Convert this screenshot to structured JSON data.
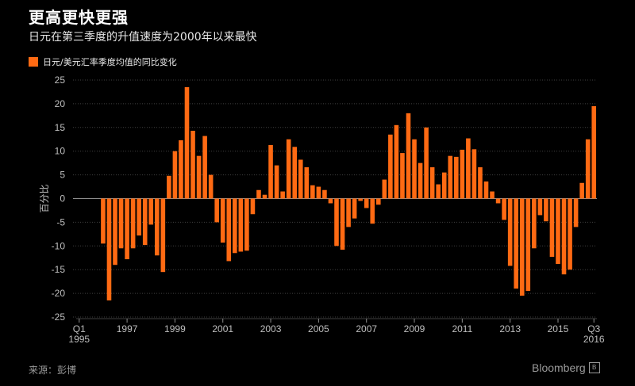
{
  "title": "更高更快更强",
  "subtitle": "日元在第三季度的升值速度为2000年以来最快",
  "legend": {
    "label": "日元/美元汇率季度均值的同比变化"
  },
  "source": "来源：彭博",
  "brand": {
    "name": "Bloomberg",
    "icon": "bloomberg-logo-icon"
  },
  "colors": {
    "bar": "#ff6a13",
    "background": "#000000",
    "grid": "#404040",
    "zero_line": "#8c8c8c"
  },
  "chart_data": {
    "type": "bar",
    "title": "更高更快更强",
    "ylabel": "百分比",
    "xlabel": "",
    "ylim": [
      -25,
      25
    ],
    "y_ticks": [
      25,
      20,
      15,
      10,
      5,
      0,
      -5,
      -10,
      -15,
      -20,
      -25
    ],
    "grid": true,
    "x_tick_labels": [
      {
        "index": 0,
        "label": "Q1",
        "sublabel": "1995"
      },
      {
        "index": 8,
        "label": "1997"
      },
      {
        "index": 16,
        "label": "1999"
      },
      {
        "index": 24,
        "label": "2001"
      },
      {
        "index": 32,
        "label": "2003"
      },
      {
        "index": 40,
        "label": "2005"
      },
      {
        "index": 48,
        "label": "2007"
      },
      {
        "index": 56,
        "label": "2009"
      },
      {
        "index": 64,
        "label": "2011"
      },
      {
        "index": 72,
        "label": "2013"
      },
      {
        "index": 80,
        "label": "2015"
      },
      {
        "index": 86,
        "label": "Q3",
        "sublabel": "2016"
      }
    ],
    "series": [
      {
        "values": [
          0,
          0,
          0,
          0,
          -9.5,
          -21.5,
          -14,
          -10.5,
          -12.8,
          -10.5,
          -7.8,
          -9.8,
          -5.5,
          -12,
          -15.5,
          4.8,
          10,
          12.3,
          23.5,
          14.3,
          9,
          13.2,
          5,
          -5,
          -9.3,
          -13.2,
          -11.5,
          -11.2,
          -11,
          -3.3,
          1.8,
          0.8,
          11.3,
          7,
          1.5,
          12.5,
          10.9,
          8.2,
          6.6,
          2.8,
          2.5,
          1.8,
          -1,
          -10,
          -10.8,
          -6,
          -4.2,
          -0.5,
          -2,
          -5.3,
          -1.3,
          4,
          13.5,
          15.5,
          9.6,
          18,
          12.5,
          7.5,
          15,
          6.6,
          3,
          5.5,
          9,
          8.8,
          10.3,
          12.7,
          10.4,
          6.6,
          3.6,
          1.5,
          -1,
          -4.5,
          -14.2,
          -19,
          -20.5,
          -19.5,
          -10.5,
          -3.5,
          -4.8,
          -12.3,
          -13.8,
          -16,
          -15,
          -6,
          3.3,
          12.5,
          19.5
        ]
      }
    ]
  }
}
